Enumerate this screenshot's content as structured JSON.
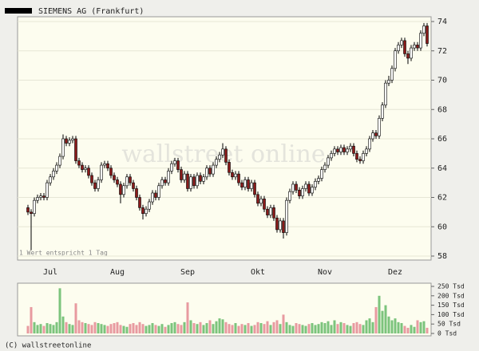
{
  "chart_data": {
    "type": "candlestick",
    "title": "SIEMENS AG (Frankfurt)",
    "note": "1 Wert entspricht 1 Tag",
    "watermark": "wallstreet online",
    "footer": "(C) wallstreetonline",
    "categories": [
      null,
      null,
      null,
      null,
      null,
      null,
      null,
      "Jul",
      null,
      null,
      null,
      null,
      null,
      null,
      null,
      null,
      null,
      null,
      null,
      null,
      null,
      null,
      null,
      null,
      null,
      null,
      null,
      null,
      "Aug",
      null,
      null,
      null,
      null,
      null,
      null,
      null,
      null,
      null,
      null,
      null,
      null,
      null,
      null,
      null,
      null,
      null,
      null,
      null,
      null,
      null,
      "Sep",
      null,
      null,
      null,
      null,
      null,
      null,
      null,
      null,
      null,
      null,
      null,
      null,
      null,
      null,
      null,
      null,
      null,
      null,
      null,
      null,
      null,
      "Okt",
      null,
      null,
      null,
      null,
      null,
      null,
      null,
      null,
      null,
      null,
      null,
      null,
      null,
      null,
      null,
      null,
      null,
      null,
      null,
      null,
      "Nov",
      null,
      null,
      null,
      null,
      null,
      null,
      null,
      null,
      null,
      null,
      null,
      null,
      null,
      null,
      null,
      null,
      null,
      null,
      null,
      null,
      null,
      "Dez",
      null,
      null,
      null,
      null,
      null,
      null,
      null,
      null,
      null,
      null
    ],
    "ohlc": [
      [
        61.3,
        61.5,
        60.8,
        61.0
      ],
      [
        61.0,
        61.2,
        58.4,
        60.9
      ],
      [
        60.9,
        62.0,
        60.7,
        61.8
      ],
      [
        61.8,
        62.2,
        61.6,
        62.0
      ],
      [
        62.0,
        62.3,
        61.8,
        62.1
      ],
      [
        62.1,
        62.3,
        61.8,
        62.0
      ],
      [
        62.0,
        63.2,
        61.8,
        63.0
      ],
      [
        63.0,
        63.6,
        62.8,
        63.4
      ],
      [
        63.4,
        64.0,
        63.2,
        63.8
      ],
      [
        63.8,
        64.4,
        63.6,
        64.2
      ],
      [
        64.2,
        65.0,
        64.0,
        64.8
      ],
      [
        64.8,
        66.3,
        64.6,
        66.0
      ],
      [
        66.0,
        66.2,
        65.5,
        65.7
      ],
      [
        65.7,
        66.1,
        65.5,
        65.9
      ],
      [
        65.9,
        66.2,
        65.7,
        66.0
      ],
      [
        66.0,
        66.2,
        64.3,
        64.5
      ],
      [
        64.5,
        64.7,
        64.0,
        64.2
      ],
      [
        64.2,
        64.4,
        63.7,
        63.9
      ],
      [
        63.9,
        64.2,
        63.7,
        64.0
      ],
      [
        64.0,
        64.2,
        63.3,
        63.5
      ],
      [
        63.5,
        63.7,
        62.8,
        63.0
      ],
      [
        63.0,
        63.2,
        62.4,
        62.6
      ],
      [
        62.6,
        63.4,
        62.4,
        63.2
      ],
      [
        63.2,
        64.4,
        63.0,
        64.2
      ],
      [
        64.2,
        64.5,
        64.0,
        64.3
      ],
      [
        64.3,
        64.5,
        63.8,
        64.0
      ],
      [
        64.0,
        64.2,
        63.3,
        63.5
      ],
      [
        63.5,
        63.7,
        63.0,
        63.2
      ],
      [
        63.2,
        63.4,
        62.7,
        62.9
      ],
      [
        62.9,
        63.1,
        61.6,
        62.2
      ],
      [
        62.2,
        63.0,
        62.0,
        62.8
      ],
      [
        62.8,
        63.6,
        62.6,
        63.4
      ],
      [
        63.4,
        63.6,
        62.8,
        63.0
      ],
      [
        63.0,
        63.2,
        62.4,
        62.6
      ],
      [
        62.6,
        62.8,
        61.8,
        62.0
      ],
      [
        62.0,
        62.2,
        61.1,
        61.3
      ],
      [
        61.3,
        61.5,
        60.5,
        60.9
      ],
      [
        60.9,
        61.4,
        60.7,
        61.2
      ],
      [
        61.2,
        61.9,
        61.0,
        61.7
      ],
      [
        61.7,
        62.5,
        61.5,
        62.3
      ],
      [
        62.3,
        62.5,
        61.8,
        62.0
      ],
      [
        62.0,
        63.0,
        61.8,
        62.8
      ],
      [
        62.8,
        63.4,
        62.6,
        63.2
      ],
      [
        63.2,
        63.4,
        62.8,
        63.0
      ],
      [
        63.0,
        64.0,
        62.8,
        63.8
      ],
      [
        63.8,
        64.5,
        63.6,
        64.3
      ],
      [
        64.3,
        64.7,
        64.1,
        64.5
      ],
      [
        64.5,
        64.7,
        63.7,
        63.9
      ],
      [
        63.9,
        64.1,
        63.0,
        63.2
      ],
      [
        63.2,
        63.8,
        63.0,
        63.6
      ],
      [
        63.6,
        63.8,
        62.4,
        62.6
      ],
      [
        62.6,
        63.6,
        62.4,
        63.4
      ],
      [
        63.4,
        63.6,
        62.6,
        62.8
      ],
      [
        62.8,
        63.7,
        62.6,
        63.5
      ],
      [
        63.5,
        63.7,
        62.9,
        63.1
      ],
      [
        63.1,
        63.6,
        62.9,
        63.4
      ],
      [
        63.4,
        64.2,
        63.2,
        64.0
      ],
      [
        64.0,
        64.2,
        63.4,
        63.6
      ],
      [
        63.6,
        64.4,
        63.4,
        64.2
      ],
      [
        64.2,
        64.8,
        64.0,
        64.6
      ],
      [
        64.6,
        65.1,
        64.4,
        64.9
      ],
      [
        64.9,
        65.7,
        64.7,
        65.3
      ],
      [
        65.3,
        65.5,
        64.2,
        64.4
      ],
      [
        64.4,
        64.6,
        63.5,
        63.7
      ],
      [
        63.7,
        63.9,
        63.2,
        63.4
      ],
      [
        63.4,
        63.8,
        63.2,
        63.6
      ],
      [
        63.6,
        63.8,
        62.8,
        63.0
      ],
      [
        63.0,
        63.2,
        62.5,
        62.7
      ],
      [
        62.7,
        63.4,
        62.5,
        63.2
      ],
      [
        63.2,
        63.4,
        62.4,
        62.6
      ],
      [
        62.6,
        63.2,
        62.4,
        63.0
      ],
      [
        63.0,
        63.2,
        62.0,
        62.2
      ],
      [
        62.2,
        62.4,
        61.4,
        61.6
      ],
      [
        61.6,
        62.1,
        61.4,
        61.9
      ],
      [
        61.9,
        62.1,
        61.0,
        61.2
      ],
      [
        61.2,
        61.4,
        60.6,
        60.8
      ],
      [
        60.8,
        61.5,
        60.6,
        61.3
      ],
      [
        61.3,
        61.5,
        60.4,
        60.6
      ],
      [
        60.6,
        60.8,
        59.6,
        59.8
      ],
      [
        59.8,
        60.6,
        59.6,
        60.4
      ],
      [
        60.4,
        60.6,
        59.2,
        59.6
      ],
      [
        59.6,
        62.0,
        59.4,
        61.8
      ],
      [
        61.8,
        62.6,
        61.6,
        62.4
      ],
      [
        62.4,
        63.1,
        62.2,
        62.9
      ],
      [
        62.9,
        63.1,
        62.3,
        62.5
      ],
      [
        62.5,
        62.7,
        61.9,
        62.1
      ],
      [
        62.1,
        62.8,
        61.9,
        62.6
      ],
      [
        62.6,
        63.1,
        62.4,
        62.9
      ],
      [
        62.9,
        63.1,
        62.1,
        62.3
      ],
      [
        62.3,
        62.9,
        62.1,
        62.7
      ],
      [
        62.7,
        63.3,
        62.5,
        63.1
      ],
      [
        63.1,
        63.5,
        62.9,
        63.3
      ],
      [
        63.3,
        64.1,
        63.1,
        63.9
      ],
      [
        63.9,
        64.4,
        63.7,
        64.2
      ],
      [
        64.2,
        64.9,
        64.0,
        64.7
      ],
      [
        64.7,
        65.2,
        64.5,
        65.0
      ],
      [
        65.0,
        65.5,
        64.8,
        65.3
      ],
      [
        65.3,
        65.5,
        64.9,
        65.1
      ],
      [
        65.1,
        65.6,
        64.9,
        65.4
      ],
      [
        65.4,
        65.6,
        64.9,
        65.1
      ],
      [
        65.1,
        65.5,
        64.9,
        65.3
      ],
      [
        65.3,
        65.7,
        65.1,
        65.5
      ],
      [
        65.5,
        65.7,
        64.8,
        65.0
      ],
      [
        65.0,
        65.2,
        64.4,
        64.6
      ],
      [
        64.6,
        64.8,
        64.3,
        64.5
      ],
      [
        64.5,
        65.2,
        64.3,
        65.0
      ],
      [
        65.0,
        65.5,
        64.8,
        65.3
      ],
      [
        65.3,
        66.2,
        65.1,
        66.0
      ],
      [
        66.0,
        66.6,
        65.8,
        66.4
      ],
      [
        66.4,
        66.6,
        66.0,
        66.2
      ],
      [
        66.2,
        67.6,
        66.0,
        67.4
      ],
      [
        67.4,
        68.5,
        67.2,
        68.3
      ],
      [
        68.3,
        70.0,
        68.1,
        69.8
      ],
      [
        69.8,
        70.3,
        69.6,
        70.0
      ],
      [
        70.0,
        71.0,
        69.8,
        70.8
      ],
      [
        70.8,
        72.2,
        70.6,
        72.0
      ],
      [
        72.0,
        72.6,
        71.8,
        72.4
      ],
      [
        72.4,
        72.9,
        72.2,
        72.7
      ],
      [
        72.7,
        72.9,
        71.6,
        71.8
      ],
      [
        71.8,
        72.0,
        71.1,
        71.5
      ],
      [
        71.5,
        72.4,
        71.3,
        72.2
      ],
      [
        72.2,
        72.6,
        72.0,
        72.4
      ],
      [
        72.4,
        72.6,
        72.0,
        72.2
      ],
      [
        72.2,
        73.4,
        72.0,
        73.2
      ],
      [
        73.2,
        73.9,
        73.0,
        73.7
      ],
      [
        73.7,
        73.9,
        72.3,
        72.5
      ]
    ],
    "up_color": "#ffffff",
    "down_color": "#8b1a1a",
    "ylim": [
      58,
      74
    ],
    "yticks": [
      58,
      60,
      62,
      64,
      66,
      68,
      70,
      72,
      74
    ],
    "grid": true,
    "volume": {
      "values": [
        40,
        140,
        60,
        45,
        50,
        40,
        55,
        50,
        45,
        60,
        240,
        90,
        60,
        50,
        45,
        160,
        70,
        60,
        55,
        50,
        45,
        60,
        55,
        50,
        45,
        40,
        50,
        55,
        60,
        45,
        40,
        35,
        50,
        55,
        45,
        60,
        50,
        40,
        45,
        55,
        45,
        40,
        50,
        35,
        45,
        55,
        60,
        50,
        45,
        60,
        165,
        70,
        55,
        50,
        60,
        45,
        55,
        70,
        50,
        65,
        80,
        75,
        60,
        50,
        45,
        55,
        40,
        50,
        45,
        55,
        40,
        45,
        60,
        55,
        50,
        65,
        45,
        60,
        70,
        50,
        100,
        60,
        45,
        40,
        55,
        50,
        45,
        40,
        50,
        55,
        45,
        50,
        60,
        55,
        65,
        45,
        70,
        50,
        60,
        55,
        45,
        40,
        55,
        60,
        50,
        45,
        70,
        80,
        60,
        140,
        200,
        120,
        150,
        90,
        70,
        80,
        60,
        55,
        40,
        30,
        45,
        35,
        70,
        60,
        65,
        30
      ],
      "up_color": "#7cc47c",
      "down_color": "#e89aa0",
      "ylim": [
        0,
        250
      ],
      "yticks": [
        {
          "value": 0,
          "label": "0 Tsd"
        },
        {
          "value": 50,
          "label": "50 Tsd"
        },
        {
          "value": 100,
          "label": "100 Tsd"
        },
        {
          "value": 150,
          "label": "150 Tsd"
        },
        {
          "value": 200,
          "label": "200 Tsd"
        },
        {
          "value": 250,
          "label": "250 Tsd"
        }
      ]
    }
  }
}
